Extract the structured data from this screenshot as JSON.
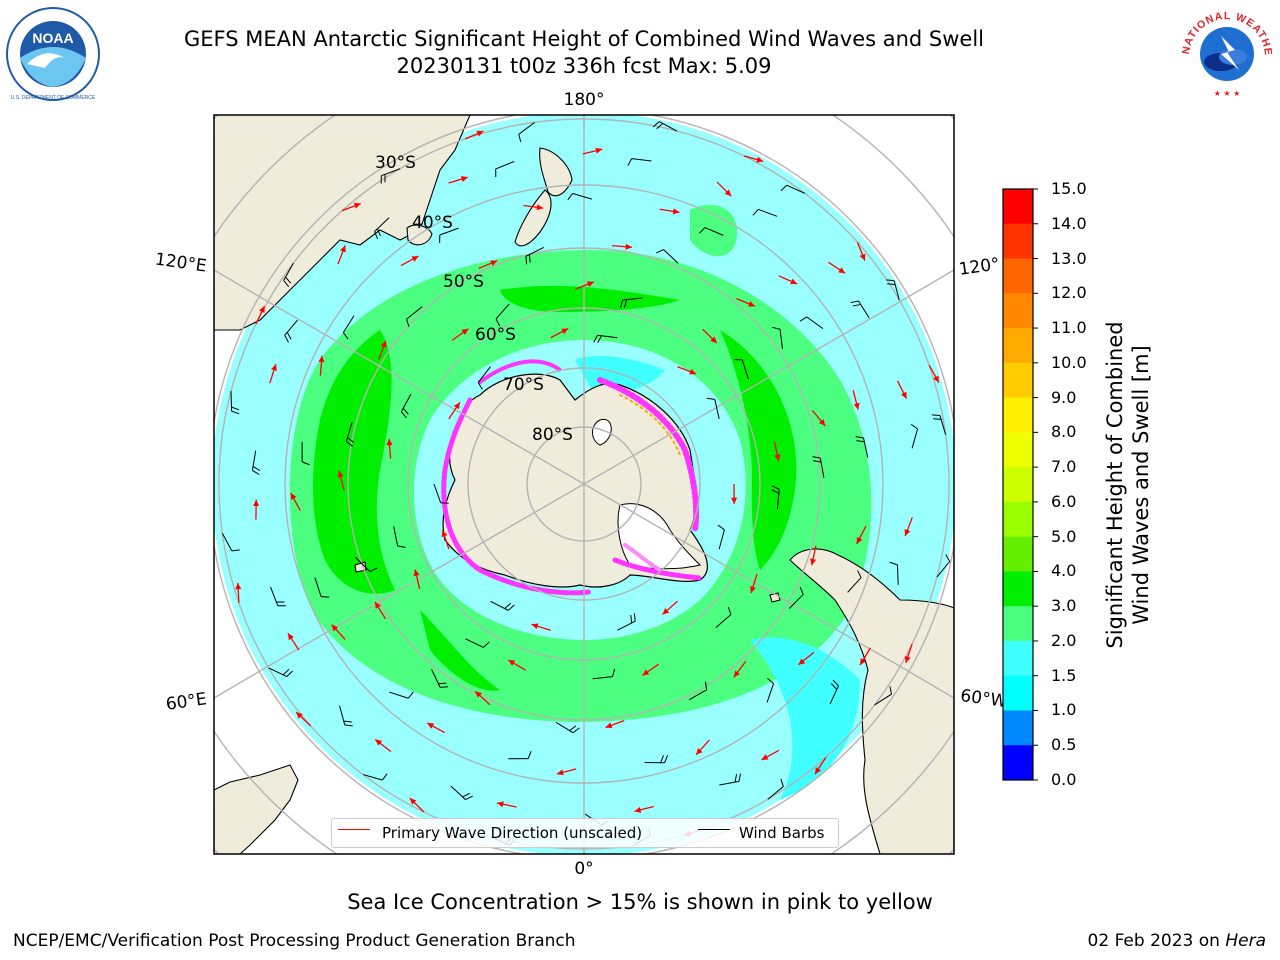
{
  "title": {
    "line1": "GEFS MEAN Antarctic Significant Height of Combined Wind Waves and Swell",
    "line2": "20230131 t00z 336h fcst   Max: 5.09"
  },
  "logos": {
    "left": {
      "name": "noaa-logo",
      "text": "NOAA",
      "ring_text": "NATIONAL OCEANIC AND ATMOSPHERIC ADMINISTRATION · U.S. DEPARTMENT OF COMMERCE",
      "color": "#1f5aa6"
    },
    "right": {
      "name": "nws-logo",
      "ring_text": "NATIONAL WEATHER SERVICE",
      "color": "#e0202a"
    }
  },
  "map": {
    "projection": "south polar stereographic",
    "longitude_labels": [
      "180°",
      "120°E",
      "120°",
      "60°E",
      "60°W",
      "0°"
    ],
    "latitude_labels": [
      "30°S",
      "40°S",
      "50°S",
      "60°S",
      "70°S",
      "80°S"
    ],
    "colors": {
      "land": "#efecdc",
      "ocean_2_3": "#99ffff",
      "ocean_3_4": "#4dff80",
      "ocean_4_5": "#00ee00",
      "ocean_1_5_2": "#40ffff",
      "gridline": "#b3b3b3",
      "wave_arrow": "#ff0000",
      "wind_barb": "#000000",
      "sea_ice": "#ff33ff"
    }
  },
  "colorbar": {
    "ticks": [
      "15.0",
      "14.0",
      "13.0",
      "12.0",
      "11.0",
      "10.0",
      "9.0",
      "8.0",
      "7.0",
      "6.0",
      "5.0",
      "4.0",
      "3.0",
      "2.0",
      "1.5",
      "1.0",
      "0.5",
      "0.0"
    ],
    "colors": [
      "#ff0000",
      "#ff3300",
      "#ff6600",
      "#ff8800",
      "#ffaa00",
      "#ffcc00",
      "#ffee00",
      "#eeff00",
      "#ccff00",
      "#99ff00",
      "#66ee00",
      "#00ee00",
      "#4dff80",
      "#99ffff",
      "#40ffff",
      "#00ffff",
      "#0088ff",
      "#0000ff"
    ],
    "label_line1": "Significant Height of Combined",
    "label_line2": "Wind Waves and Swell [m]"
  },
  "legend": {
    "wave": "Primary Wave Direction (unscaled)",
    "wind": "Wind Barbs"
  },
  "footer": {
    "note": "Sea Ice Concentration > 15% is shown in pink to yellow",
    "credit": "NCEP/EMC/Verification Post Processing Product Generation Branch",
    "date": "02 Feb 2023 on",
    "machine": "Hera"
  }
}
